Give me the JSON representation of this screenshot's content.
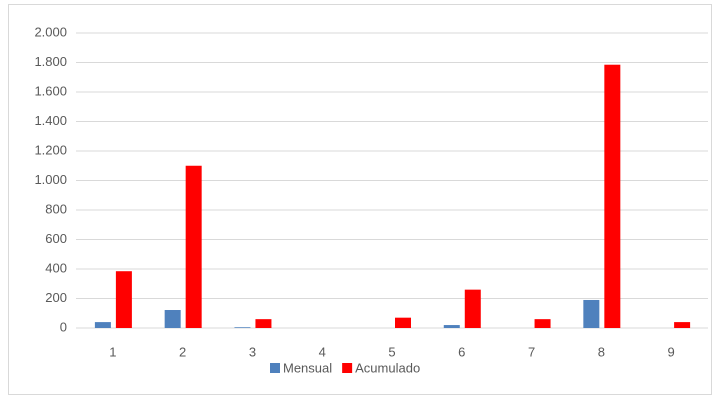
{
  "chart_data": {
    "type": "bar",
    "categories": [
      "1",
      "2",
      "3",
      "4",
      "5",
      "6",
      "7",
      "8",
      "9"
    ],
    "series": [
      {
        "name": "Mensual",
        "color": "#4f81bd",
        "values": [
          40,
          122,
          5,
          0,
          0,
          20,
          0,
          190,
          0
        ]
      },
      {
        "name": "Acumulado",
        "color": "#ff0000",
        "values": [
          385,
          1100,
          60,
          0,
          70,
          260,
          60,
          1785,
          40
        ]
      }
    ],
    "ylim": [
      0,
      2000
    ],
    "yticks": [
      0,
      200,
      400,
      600,
      800,
      {
        "value": 1000,
        "label": "1.000"
      },
      {
        "value": 1200,
        "label": "1.200"
      },
      {
        "value": 1400,
        "label": "1.400"
      },
      {
        "value": 1600,
        "label": "1.600"
      },
      {
        "value": 1800,
        "label": "1.800"
      },
      {
        "value": 2000,
        "label": "2.000"
      }
    ],
    "grid": true,
    "legend": "bottom"
  }
}
